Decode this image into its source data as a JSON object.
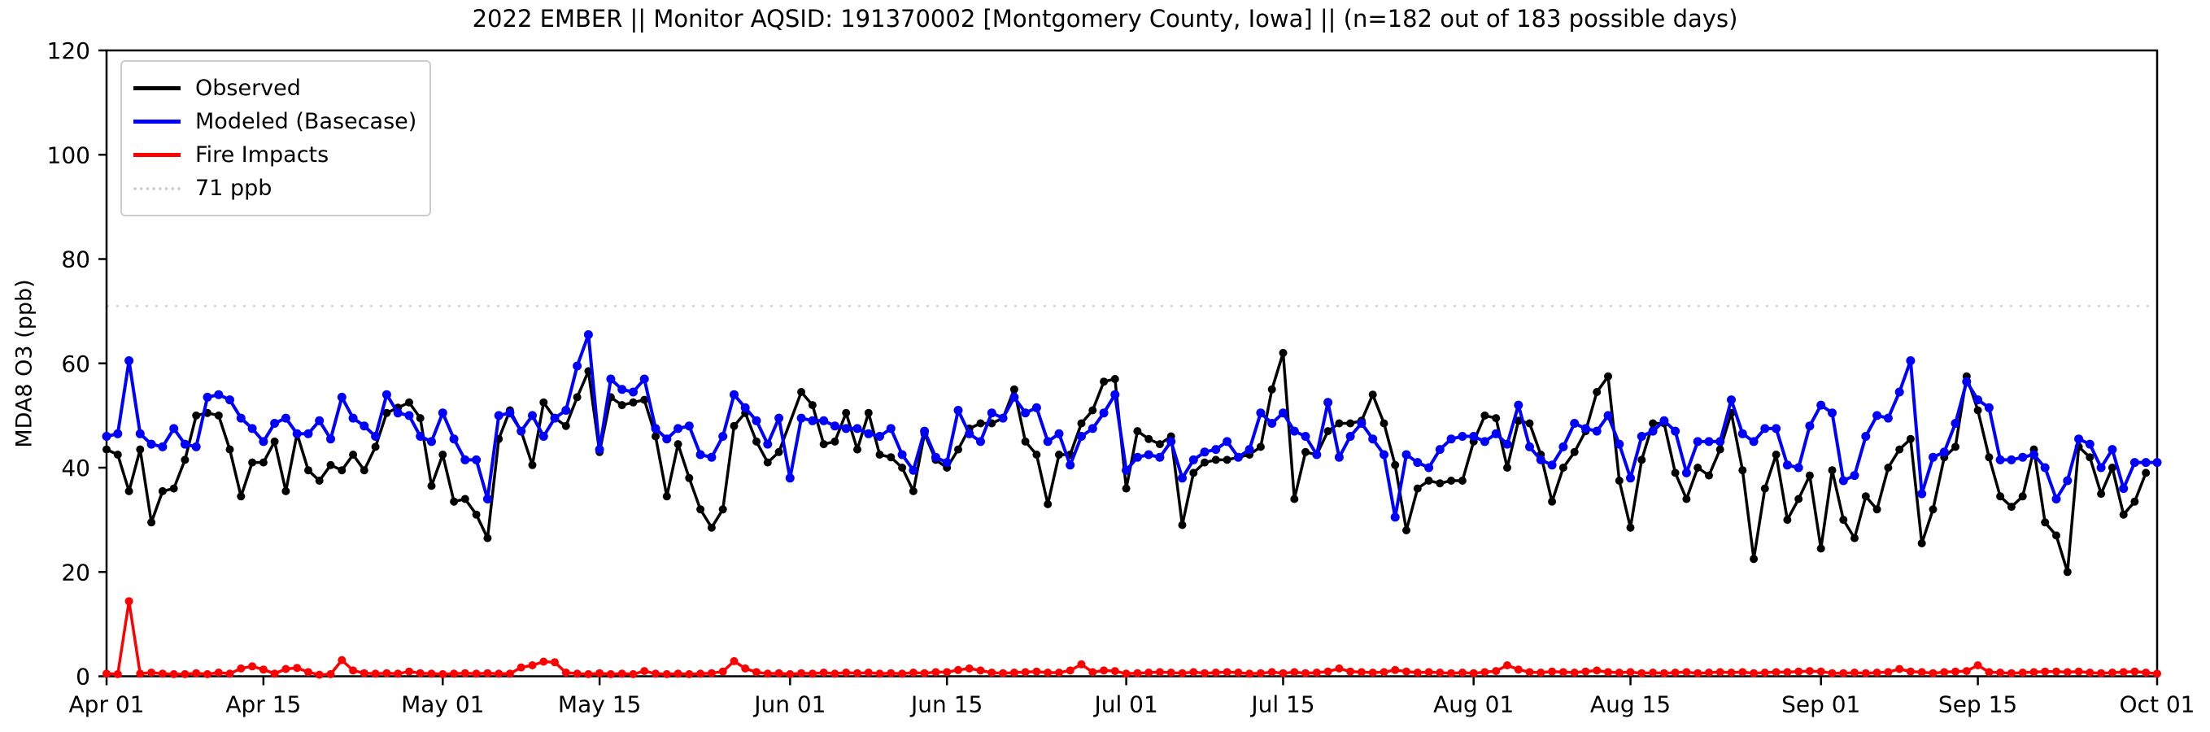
{
  "title": "2022 EMBER || Monitor AQSID: 191370002 [Montgomery County, Iowa] || (n=182 out of 183 possible days)",
  "y_axis": {
    "label": "MDA8 O3 (ppb)",
    "ticks": [
      0,
      20,
      40,
      60,
      80,
      100,
      120
    ],
    "range": [
      0,
      120
    ]
  },
  "x_axis": {
    "range_days": [
      0,
      183
    ],
    "ticks": [
      {
        "day": 0,
        "label": "Apr 01"
      },
      {
        "day": 14,
        "label": "Apr 15"
      },
      {
        "day": 30,
        "label": "May 01"
      },
      {
        "day": 44,
        "label": "May 15"
      },
      {
        "day": 61,
        "label": "Jun 01"
      },
      {
        "day": 75,
        "label": "Jun 15"
      },
      {
        "day": 91,
        "label": "Jul 01"
      },
      {
        "day": 105,
        "label": "Jul 15"
      },
      {
        "day": 122,
        "label": "Aug 01"
      },
      {
        "day": 136,
        "label": "Aug 15"
      },
      {
        "day": 153,
        "label": "Sep 01"
      },
      {
        "day": 167,
        "label": "Sep 15"
      },
      {
        "day": 183,
        "label": "Oct 01"
      }
    ]
  },
  "legend": {
    "observed": "Observed",
    "modeled": "Modeled (Basecase)",
    "fire": "Fire Impacts",
    "threshold": "71 ppb"
  },
  "chart_data": {
    "type": "line",
    "title": "2022 EMBER || Monitor AQSID: 191370002 [Montgomery County, Iowa] || (n=182 out of 183 possible days)",
    "xlabel": "",
    "ylabel": "MDA8 O3 (ppb)",
    "ylim": [
      0,
      120
    ],
    "x_unit": "days from Apr 01 to Oct 01 (daily values)",
    "threshold_line": {
      "label": "71 ppb",
      "value": 71,
      "color": "#d3d3d3",
      "style": "dotted"
    },
    "legend_position": "upper left",
    "grid": false,
    "series": [
      {
        "name": "Observed",
        "color": "#000000",
        "marker": "circle",
        "values": [
          43.5,
          42.5,
          35.5,
          43.5,
          29.5,
          35.5,
          36,
          41.5,
          50,
          50.5,
          50,
          43.5,
          34.5,
          41,
          41,
          45,
          35.5,
          46.5,
          39.5,
          37.5,
          40.5,
          39.5,
          42.5,
          39.5,
          44,
          50.5,
          51.5,
          52.5,
          49.5,
          36.5,
          42.5,
          33.5,
          34,
          31,
          26.5,
          45.5,
          51,
          47,
          40.5,
          52.5,
          49.5,
          48,
          53.5,
          58.5,
          43,
          53.5,
          52,
          52.5,
          53,
          46,
          34.5,
          44.5,
          38,
          32,
          28.5,
          32,
          48,
          50.5,
          45,
          41,
          43,
          null,
          54.5,
          52,
          44.5,
          45,
          50.5,
          43.5,
          50.5,
          42.5,
          42,
          40,
          35.5,
          46.5,
          41.5,
          40,
          43.5,
          47.5,
          48.5,
          48.5,
          49.5,
          55,
          45,
          42.5,
          33,
          42.5,
          42.5,
          48.5,
          51,
          56.5,
          57,
          36,
          47,
          45.5,
          44.5,
          46,
          29,
          39,
          41,
          41.5,
          41.5,
          42,
          42.5,
          44,
          55,
          62,
          34,
          43,
          42.5,
          47,
          48.5,
          48.5,
          49,
          54,
          48.5,
          40.5,
          28,
          36,
          37.5,
          37,
          37.5,
          37.5,
          45,
          50,
          49.5,
          40,
          49,
          48.5,
          42.5,
          33.5,
          40,
          43,
          47,
          54.5,
          57.5,
          37.5,
          28.5,
          41.5,
          48.5,
          48.5,
          39,
          34,
          40,
          38.5,
          43.5,
          50.5,
          39.5,
          22.5,
          36,
          42.5,
          30,
          34,
          38.5,
          24.5,
          39.5,
          30,
          26.5,
          34.5,
          32,
          40,
          43.5,
          45.5,
          25.5,
          32,
          42,
          44,
          57.5,
          51,
          42,
          34.5,
          32.5,
          34.5,
          43.5,
          29.5,
          27,
          20,
          44,
          42,
          35,
          40,
          31,
          33.5,
          39,
          null
        ]
      },
      {
        "name": "Modeled (Basecase)",
        "color": "#0000ff",
        "marker": "circle",
        "values": [
          46,
          46.5,
          60.5,
          46.5,
          44.5,
          44,
          47.5,
          44.5,
          44,
          53.5,
          54,
          53,
          49.5,
          47.5,
          45,
          48.5,
          49.5,
          46.5,
          46.5,
          49,
          45.5,
          53.5,
          49.5,
          48,
          46,
          54,
          50.5,
          50,
          46,
          45,
          50.5,
          45.5,
          41.5,
          41.5,
          34,
          50,
          50.5,
          47,
          50,
          46,
          49.5,
          51,
          59.5,
          65.5,
          43.5,
          57,
          55,
          54.5,
          57,
          47.5,
          45.5,
          47.5,
          48,
          42.5,
          42,
          46,
          54,
          51.5,
          49,
          44.5,
          49.5,
          38,
          49.5,
          49,
          49,
          48,
          47.5,
          47.5,
          46.5,
          46,
          47.5,
          42.5,
          39.5,
          47,
          42,
          41,
          51,
          46.5,
          45,
          50.5,
          49.5,
          53.5,
          50.5,
          51.5,
          45,
          46.5,
          40.5,
          46,
          47.5,
          50.5,
          54,
          39.5,
          42,
          42.5,
          42,
          45,
          38,
          41.5,
          43,
          43.5,
          45,
          42,
          43.5,
          50.5,
          48.5,
          50.5,
          47,
          46,
          42.5,
          52.5,
          42,
          46,
          48.5,
          45.5,
          42.5,
          30.5,
          42.5,
          41,
          40,
          43.5,
          45.5,
          46,
          46,
          45,
          46.5,
          44.5,
          52,
          44,
          41.5,
          40.5,
          44,
          48.5,
          47.5,
          47,
          50,
          44.5,
          38,
          46,
          47,
          49,
          47,
          39,
          45,
          45,
          45,
          53,
          46.5,
          45,
          47.5,
          47.5,
          40.5,
          40,
          48,
          52,
          50.5,
          37.5,
          38.5,
          46,
          50,
          49.5,
          54.5,
          60.5,
          35,
          42,
          43,
          48.5,
          56.5,
          53,
          51.5,
          41.5,
          41.5,
          42,
          42.5,
          40,
          34,
          37.5,
          45.5,
          44.5,
          40,
          43.5,
          36,
          41,
          41,
          41
        ]
      },
      {
        "name": "Fire Impacts",
        "color": "#ff0000",
        "marker": "circle",
        "values": [
          0.5,
          0.4,
          14.4,
          0.5,
          0.7,
          0.5,
          0.4,
          0.4,
          0.6,
          0.4,
          0.7,
          0.5,
          1.5,
          1.9,
          1.3,
          0.5,
          1.4,
          1.6,
          0.8,
          0.3,
          0.4,
          3.1,
          1.1,
          0.6,
          0.5,
          0.6,
          0.5,
          0.9,
          0.6,
          0.5,
          0.4,
          0.5,
          0.6,
          0.5,
          0.6,
          0.5,
          0.5,
          1.7,
          2.1,
          2.8,
          2.7,
          0.7,
          0.5,
          0.4,
          0.6,
          0.4,
          0.5,
          0.4,
          1,
          0.5,
          0.4,
          0.5,
          0.4,
          0.5,
          0.6,
          0.9,
          2.9,
          1.5,
          0.8,
          0.5,
          0.6,
          0.4,
          0.6,
          0.5,
          0.7,
          0.5,
          0.7,
          0.6,
          0.7,
          0.5,
          0.6,
          0.5,
          0.7,
          0.6,
          0.8,
          0.8,
          1.2,
          1.5,
          1.1,
          0.7,
          0.6,
          0.7,
          0.8,
          0.9,
          0.7,
          0.7,
          1.1,
          2.3,
          0.8,
          1.1,
          1,
          0.5,
          0.6,
          0.7,
          0.8,
          0.7,
          0.6,
          0.8,
          0.6,
          0.7,
          0.8,
          0.7,
          0.5,
          0.6,
          0.8,
          0.6,
          0.8,
          0.6,
          0.7,
          0.9,
          1.5,
          0.9,
          0.8,
          0.7,
          0.8,
          1.2,
          0.9,
          0.7,
          0.8,
          0.7,
          0.6,
          0.7,
          0.6,
          0.8,
          1,
          2.1,
          1.3,
          0.8,
          0.7,
          0.9,
          0.8,
          0.7,
          0.9,
          1.1,
          0.8,
          0.7,
          0.8,
          0.6,
          0.7,
          0.6,
          0.7,
          0.8,
          0.6,
          0.7,
          0.8,
          0.7,
          0.8,
          0.6,
          0.7,
          0.8,
          0.8,
          0.9,
          1,
          0.9,
          0.6,
          0.6,
          0.7,
          0.6,
          0.7,
          0.8,
          1.4,
          0.9,
          0.8,
          0.6,
          0.8,
          0.9,
          1,
          2.1,
          0.8,
          0.7,
          0.6,
          0.7,
          0.8,
          0.9,
          0.9,
          0.8,
          0.9,
          0.7,
          0.6,
          0.7,
          0.8,
          0.9,
          0.7,
          0.5
        ]
      }
    ]
  }
}
